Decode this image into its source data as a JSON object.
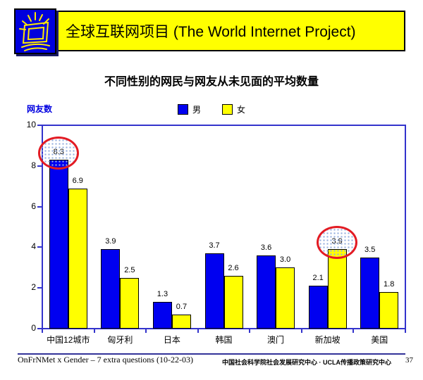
{
  "header": {
    "title": "全球互联网项目 (The World Internet Project)",
    "logo": "shining-monitor-logo"
  },
  "slide": {
    "title": "不同性别的网民与网友从未见面的平均数量"
  },
  "chart_data": {
    "type": "bar",
    "title": "不同性别的网民与网友从未见面的平均数量",
    "ylabel": "网友数",
    "xlabel": "",
    "categories": [
      "中国12城市",
      "匈牙利",
      "日本",
      "韩国",
      "澳门",
      "新加坡",
      "美国"
    ],
    "series": [
      {
        "name": "男",
        "color": "#0000f0",
        "values": [
          8.3,
          3.9,
          1.3,
          3.7,
          3.6,
          2.1,
          3.5
        ]
      },
      {
        "name": "女",
        "color": "#ffff00",
        "values": [
          6.9,
          2.5,
          0.7,
          2.6,
          3.0,
          3.9,
          1.8
        ]
      }
    ],
    "ylim": [
      0,
      10
    ],
    "yticks": [
      0,
      2,
      4,
      6,
      8,
      10
    ],
    "grid": false,
    "legend_position": "top-center",
    "annotations": [
      {
        "type": "circle",
        "series": 0,
        "category": 0,
        "label": "8.3"
      },
      {
        "type": "circle",
        "series": 1,
        "category": 5,
        "label": "3.9"
      }
    ]
  },
  "footer": {
    "left": "OnFrNMet x Gender – 7 extra questions (10-22-03)",
    "center": "中国社会科学院社会发展研究中心 · UCLA传播政策研究中心",
    "page": "37"
  },
  "colors": {
    "header_bg": "#ffff00",
    "logo_bg": "#0000dd",
    "axis": "#3333cc",
    "male_bar": "#0000f0",
    "female_bar": "#ffff00",
    "annotation_red": "#e31b23",
    "ylabel_blue": "#0000e0",
    "footer_line": "#333399"
  }
}
